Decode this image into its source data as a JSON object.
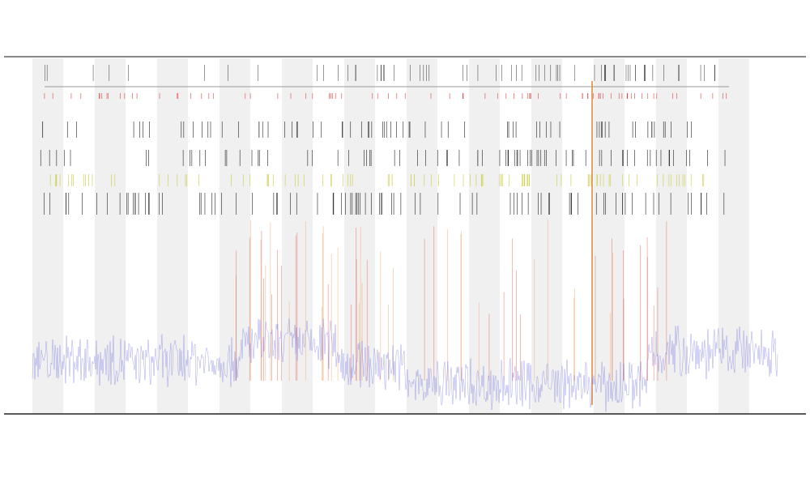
{
  "chart_data": {
    "type": "line"
  }
}
